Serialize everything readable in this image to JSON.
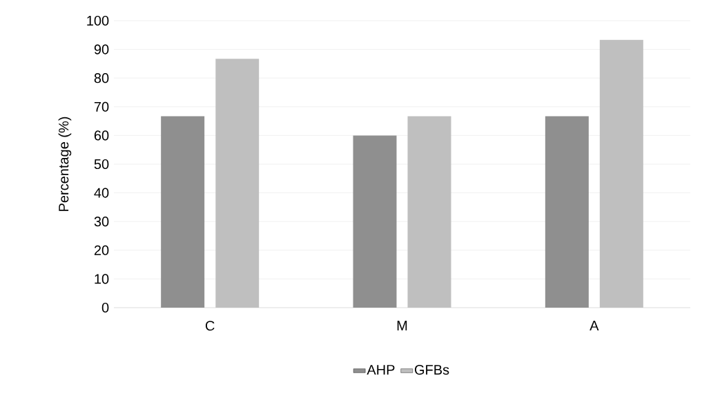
{
  "chart_data": {
    "type": "bar",
    "ylabel": "Percentage (%)",
    "categories": [
      "C",
      "M",
      "A"
    ],
    "series": [
      {
        "name": "AHP",
        "color": "#8f8f8f",
        "values": [
          66.7,
          60,
          66.7
        ]
      },
      {
        "name": "GFBs",
        "color": "#bfbfbf",
        "values": [
          86.7,
          66.7,
          93.3
        ]
      }
    ],
    "ylim": [
      0,
      100
    ],
    "yticks": [
      0,
      10,
      20,
      30,
      40,
      50,
      60,
      70,
      80,
      90,
      100
    ],
    "grid": "y",
    "legend": "bottom"
  }
}
